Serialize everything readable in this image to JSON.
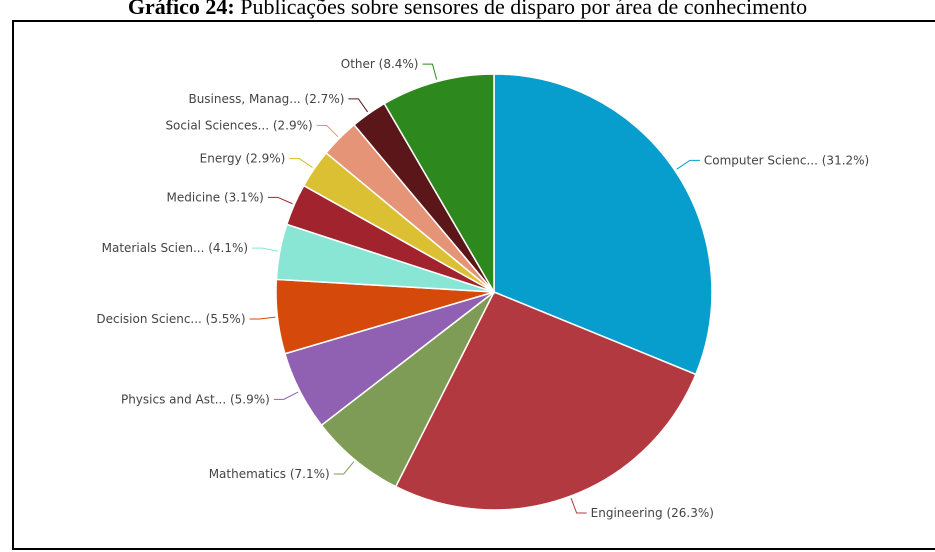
{
  "caption": {
    "number": "Gráfico 24:",
    "text": "Publicações sobre sensores de disparo por área de conhecimento"
  },
  "chart_data": {
    "type": "pie",
    "start_angle": "12 o'clock, clockwise",
    "slices": [
      {
        "label": "Computer Scienc... (31.2%)",
        "name": "Computer Scienc...",
        "value": 31.2,
        "color": "#079dcc"
      },
      {
        "label": "Engineering (26.3%)",
        "name": "Engineering",
        "value": 26.3,
        "color": "#b33940"
      },
      {
        "label": "Mathematics (7.1%)",
        "name": "Mathematics",
        "value": 7.1,
        "color": "#7e9c56"
      },
      {
        "label": "Physics and Ast... (5.9%)",
        "name": "Physics and Ast...",
        "value": 5.9,
        "color": "#9060b3"
      },
      {
        "label": "Decision Scienc... (5.5%)",
        "name": "Decision Scienc...",
        "value": 5.5,
        "color": "#d54a0a"
      },
      {
        "label": "Materials Scien... (4.1%)",
        "name": "Materials Scien...",
        "value": 4.1,
        "color": "#89e5d4"
      },
      {
        "label": "Medicine (3.1%)",
        "name": "Medicine",
        "value": 3.1,
        "color": "#a1232d"
      },
      {
        "label": "Energy (2.9%)",
        "name": "Energy",
        "value": 2.9,
        "color": "#dcc033"
      },
      {
        "label": "Social Sciences... (2.9%)",
        "name": "Social Sciences...",
        "value": 2.9,
        "color": "#e59478"
      },
      {
        "label": "Business, Manag... (2.7%)",
        "name": "Business, Manag...",
        "value": 2.7,
        "color": "#5a1619"
      },
      {
        "label": "Other (8.4%)",
        "name": "Other",
        "value": 8.4,
        "color": "#2d891e"
      }
    ]
  }
}
